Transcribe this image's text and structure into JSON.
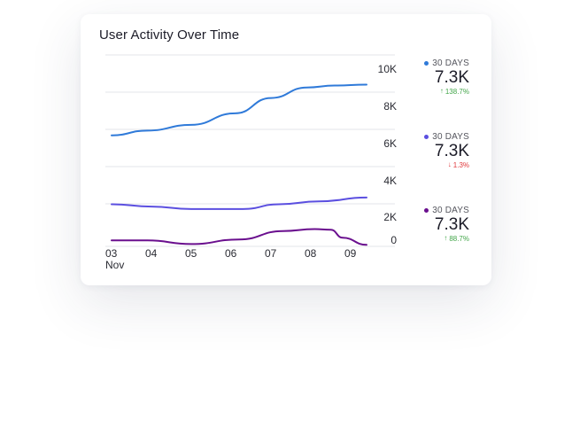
{
  "card": {
    "title": "User Activity Over Time"
  },
  "chart_data": {
    "type": "line",
    "title": "User Activity Over Time",
    "x": [
      "03",
      "04",
      "05",
      "06",
      "07",
      "08",
      "09"
    ],
    "x_sublabel": "Nov",
    "y_ticks": [
      "0",
      "2K",
      "4K",
      "6K",
      "8K",
      "10K"
    ],
    "ylim": [
      0,
      10000
    ],
    "grid": true,
    "y_axis_side": "right",
    "series": [
      {
        "color": "#2f7ad9",
        "points": [
          [
            3.0,
            5800
          ],
          [
            3.9,
            6050
          ],
          [
            5.0,
            6350
          ],
          [
            6.1,
            6950
          ],
          [
            7.0,
            7750
          ],
          [
            7.9,
            8300
          ],
          [
            8.6,
            8400
          ],
          [
            9.4,
            8450
          ]
        ]
      },
      {
        "color": "#5b4fe0",
        "points": [
          [
            3.0,
            2200
          ],
          [
            4.0,
            2080
          ],
          [
            5.0,
            1950
          ],
          [
            6.3,
            1950
          ],
          [
            7.2,
            2200
          ],
          [
            8.2,
            2350
          ],
          [
            9.4,
            2550
          ]
        ]
      },
      {
        "color": "#6a0f8e",
        "points": [
          [
            3.0,
            310
          ],
          [
            3.9,
            310
          ],
          [
            5.0,
            120
          ],
          [
            6.2,
            360
          ],
          [
            7.3,
            800
          ],
          [
            8.1,
            900
          ],
          [
            8.5,
            870
          ],
          [
            8.8,
            450
          ],
          [
            9.4,
            80
          ]
        ]
      }
    ]
  },
  "stats": [
    {
      "label": "30 DAYS",
      "value": "7.3K",
      "change": "138.7%",
      "direction": "up",
      "dot_color": "#2f7ad9",
      "change_color": "#43a64a",
      "arrow_icon": "arrow-up-icon"
    },
    {
      "label": "30 DAYS",
      "value": "7.3K",
      "change": "1.3%",
      "direction": "down",
      "dot_color": "#5b4fe0",
      "change_color": "#e0383b",
      "arrow_icon": "arrow-down-icon"
    },
    {
      "label": "30 DAYS",
      "value": "7.3K",
      "change": "88.7%",
      "direction": "up",
      "dot_color": "#6a0f8e",
      "change_color": "#43a64a",
      "arrow_icon": "arrow-up-icon"
    }
  ]
}
